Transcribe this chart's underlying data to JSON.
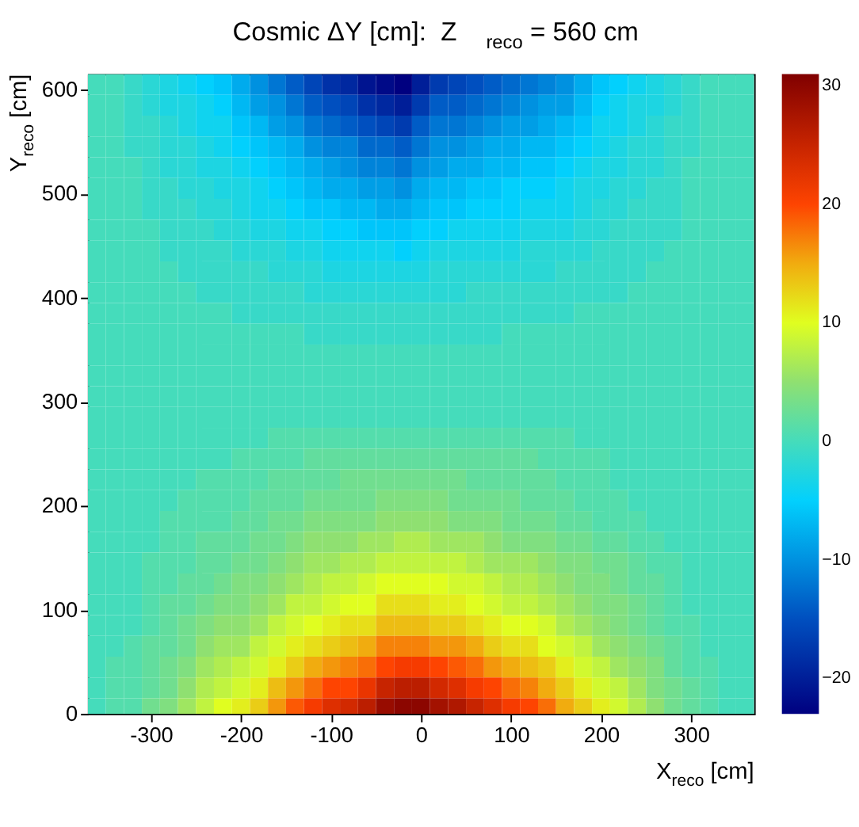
{
  "chart_data": {
    "type": "heatmap",
    "title": "Cosmic ΔY [cm]:  Z$_{reco}$ = 560 cm",
    "xlabel": "X$_{reco}$ [cm]",
    "ylabel": "Y$_{reco}$ [cm]",
    "x": [
      -360,
      -340,
      -320,
      -300,
      -280,
      -260,
      -240,
      -220,
      -200,
      -180,
      -160,
      -140,
      -120,
      -100,
      -80,
      -60,
      -40,
      -20,
      0,
      20,
      40,
      60,
      80,
      100,
      120,
      140,
      160,
      180,
      200,
      220,
      240,
      260,
      280,
      300,
      320,
      340,
      360
    ],
    "y": [
      605,
      585,
      565,
      545,
      525,
      505,
      485,
      465,
      445,
      425,
      405,
      385,
      365,
      345,
      325,
      305,
      285,
      265,
      245,
      225,
      205,
      185,
      165,
      145,
      125,
      105,
      85,
      65,
      45,
      25,
      5
    ],
    "xlim": [
      -370,
      370
    ],
    "ylim": [
      0,
      615
    ],
    "xticks": [
      -300,
      -200,
      -100,
      0,
      100,
      200,
      300
    ],
    "yticks": [
      0,
      100,
      200,
      300,
      400,
      500,
      600
    ],
    "clim": [
      -23,
      31
    ],
    "cticks": [
      {
        "value": -20,
        "label": "−20"
      },
      {
        "value": -10,
        "label": "−10"
      },
      0,
      10,
      20,
      30
    ],
    "grid": false,
    "cells": [
      [
        0,
        0,
        -1,
        -2,
        -3,
        -4,
        -5,
        -6,
        -8,
        -10,
        -12,
        -14,
        -16,
        -18,
        -19,
        -21,
        -22,
        -23,
        -20,
        -17,
        -16,
        -15,
        -14,
        -13,
        -12,
        -11,
        -10,
        -8,
        -6,
        -5,
        -4,
        -3,
        -2,
        -1,
        0,
        0,
        0
      ],
      [
        0,
        0,
        -1,
        -2,
        -3,
        -3,
        -4,
        -5,
        -7,
        -9,
        -10,
        -12,
        -14,
        -15,
        -16,
        -18,
        -19,
        -20,
        -17,
        -14,
        -14,
        -13,
        -12,
        -11,
        -10,
        -9,
        -9,
        -7,
        -5,
        -4,
        -3,
        -3,
        -2,
        -1,
        0,
        0,
        0
      ],
      [
        0,
        0,
        -1,
        -1,
        -2,
        -3,
        -4,
        -4,
        -6,
        -7,
        -9,
        -10,
        -12,
        -13,
        -14,
        -15,
        -16,
        -17,
        -14,
        -12,
        -12,
        -11,
        -10,
        -9,
        -9,
        -8,
        -7,
        -6,
        -4,
        -4,
        -3,
        -2,
        -1,
        -1,
        0,
        0,
        0
      ],
      [
        0,
        0,
        -1,
        -1,
        -2,
        -2,
        -3,
        -4,
        -5,
        -6,
        -7,
        -8,
        -10,
        -11,
        -11,
        -13,
        -13,
        -14,
        -12,
        -10,
        -10,
        -9,
        -8,
        -8,
        -7,
        -7,
        -6,
        -5,
        -4,
        -3,
        -2,
        -2,
        -1,
        -1,
        0,
        0,
        0
      ],
      [
        0,
        0,
        0,
        -1,
        -2,
        -2,
        -3,
        -3,
        -4,
        -5,
        -6,
        -7,
        -8,
        -9,
        -10,
        -11,
        -11,
        -12,
        -10,
        -9,
        -8,
        -8,
        -7,
        -7,
        -6,
        -6,
        -5,
        -4,
        -3,
        -3,
        -2,
        -2,
        -1,
        0,
        0,
        0,
        0
      ],
      [
        0,
        0,
        0,
        -1,
        -1,
        -2,
        -2,
        -3,
        -3,
        -4,
        -5,
        -6,
        -7,
        -8,
        -8,
        -9,
        -9,
        -10,
        -8,
        -7,
        -7,
        -6,
        -6,
        -5,
        -5,
        -5,
        -4,
        -3,
        -3,
        -2,
        -2,
        -1,
        -1,
        0,
        0,
        0,
        0
      ],
      [
        0,
        0,
        0,
        -1,
        -1,
        -1,
        -2,
        -2,
        -3,
        -4,
        -4,
        -5,
        -6,
        -6,
        -7,
        -7,
        -8,
        -8,
        -7,
        -6,
        -6,
        -5,
        -5,
        -5,
        -4,
        -4,
        -4,
        -3,
        -2,
        -2,
        -1,
        -1,
        -1,
        0,
        0,
        0,
        0
      ],
      [
        0,
        0,
        0,
        0,
        -1,
        -1,
        -1,
        -2,
        -2,
        -3,
        -3,
        -4,
        -4,
        -5,
        -5,
        -6,
        -6,
        -6,
        -5,
        -5,
        -4,
        -4,
        -4,
        -4,
        -3,
        -3,
        -3,
        -2,
        -2,
        -1,
        -1,
        -1,
        -1,
        0,
        0,
        0,
        0
      ],
      [
        0,
        0,
        0,
        0,
        -1,
        -1,
        -1,
        -1,
        -2,
        -2,
        -2,
        -3,
        -3,
        -4,
        -4,
        -4,
        -4,
        -5,
        -4,
        -3,
        -3,
        -3,
        -3,
        -3,
        -2,
        -2,
        -2,
        -2,
        -1,
        -1,
        -1,
        -1,
        0,
        0,
        0,
        0,
        0
      ],
      [
        0,
        0,
        0,
        0,
        0,
        -1,
        -1,
        -1,
        -1,
        -1,
        -2,
        -2,
        -2,
        -3,
        -3,
        -3,
        -3,
        -3,
        -3,
        -2,
        -2,
        -2,
        -2,
        -2,
        -2,
        -2,
        -1,
        -1,
        -1,
        -1,
        -1,
        0,
        0,
        0,
        0,
        0,
        0
      ],
      [
        0,
        0,
        0,
        0,
        0,
        0,
        -1,
        -1,
        -1,
        -1,
        -1,
        -1,
        -2,
        -2,
        -2,
        -2,
        -2,
        -2,
        -2,
        -2,
        -2,
        -1,
        -1,
        -1,
        -1,
        -1,
        -1,
        -1,
        -1,
        -1,
        0,
        0,
        0,
        0,
        0,
        0,
        0
      ],
      [
        0,
        0,
        0,
        0,
        0,
        0,
        0,
        0,
        -1,
        -1,
        -1,
        -1,
        -1,
        -1,
        -1,
        -1,
        -1,
        -1,
        -1,
        -1,
        -1,
        -1,
        -1,
        -1,
        -1,
        -1,
        -1,
        0,
        0,
        0,
        0,
        0,
        0,
        0,
        0,
        0,
        0
      ],
      [
        0,
        0,
        0,
        0,
        0,
        0,
        0,
        0,
        0,
        0,
        0,
        0,
        -1,
        -1,
        -1,
        -1,
        -1,
        -1,
        -1,
        -1,
        -1,
        -1,
        -1,
        0,
        0,
        0,
        0,
        0,
        0,
        0,
        0,
        0,
        0,
        0,
        0,
        0,
        0
      ],
      [
        0,
        0,
        0,
        0,
        0,
        0,
        0,
        0,
        0,
        0,
        0,
        0,
        0,
        0,
        0,
        0,
        0,
        0,
        0,
        0,
        0,
        0,
        0,
        0,
        0,
        0,
        0,
        0,
        0,
        0,
        0,
        0,
        0,
        0,
        0,
        0,
        0
      ],
      [
        0,
        0,
        0,
        0,
        0,
        0,
        0,
        0,
        0,
        0,
        0,
        0,
        0,
        0,
        0,
        0,
        0,
        0,
        0,
        0,
        0,
        0,
        0,
        0,
        0,
        0,
        0,
        0,
        0,
        0,
        0,
        0,
        0,
        0,
        0,
        0,
        0
      ],
      [
        0,
        0,
        0,
        0,
        0,
        0,
        0,
        0,
        0,
        0,
        0,
        0,
        0,
        0,
        0,
        0,
        0,
        0,
        0,
        0,
        0,
        0,
        0,
        0,
        0,
        0,
        0,
        0,
        0,
        0,
        0,
        0,
        0,
        0,
        0,
        0,
        0
      ],
      [
        0,
        0,
        0,
        0,
        0,
        0,
        0,
        0,
        0,
        0,
        0,
        0,
        0,
        0,
        0,
        0,
        0,
        0,
        0,
        0,
        0,
        0,
        0,
        0,
        0,
        0,
        0,
        0,
        0,
        0,
        0,
        0,
        0,
        0,
        0,
        0,
        0
      ],
      [
        0,
        0,
        0,
        0,
        0,
        0,
        0,
        0,
        0,
        0,
        1,
        1,
        1,
        1,
        1,
        1,
        1,
        1,
        1,
        1,
        1,
        1,
        1,
        1,
        1,
        1,
        1,
        0,
        0,
        0,
        0,
        0,
        0,
        0,
        0,
        0,
        0
      ],
      [
        0,
        0,
        0,
        0,
        0,
        0,
        0,
        0,
        1,
        1,
        1,
        1,
        2,
        2,
        2,
        2,
        2,
        2,
        2,
        2,
        2,
        2,
        2,
        2,
        2,
        1,
        1,
        1,
        1,
        0,
        0,
        0,
        0,
        0,
        0,
        0,
        0
      ],
      [
        0,
        0,
        0,
        0,
        0,
        0,
        1,
        1,
        1,
        1,
        2,
        2,
        2,
        2,
        3,
        3,
        3,
        3,
        3,
        3,
        3,
        2,
        2,
        2,
        2,
        2,
        1,
        1,
        1,
        0,
        0,
        0,
        0,
        0,
        0,
        0,
        0
      ],
      [
        0,
        0,
        0,
        0,
        0,
        1,
        1,
        1,
        1,
        2,
        2,
        2,
        3,
        3,
        3,
        3,
        4,
        4,
        4,
        4,
        3,
        3,
        3,
        3,
        2,
        2,
        2,
        1,
        1,
        1,
        0,
        0,
        0,
        0,
        0,
        0,
        0
      ],
      [
        0,
        0,
        0,
        0,
        1,
        1,
        1,
        1,
        2,
        2,
        3,
        3,
        4,
        4,
        4,
        4,
        5,
        5,
        5,
        5,
        4,
        4,
        4,
        3,
        3,
        3,
        2,
        2,
        1,
        1,
        1,
        0,
        0,
        0,
        0,
        0,
        0
      ],
      [
        0,
        0,
        0,
        0,
        1,
        1,
        2,
        2,
        2,
        3,
        3,
        4,
        5,
        5,
        5,
        6,
        6,
        7,
        7,
        6,
        6,
        6,
        5,
        4,
        4,
        4,
        3,
        3,
        2,
        2,
        1,
        1,
        0,
        0,
        0,
        0,
        0
      ],
      [
        0,
        0,
        0,
        1,
        1,
        1,
        2,
        2,
        3,
        3,
        4,
        5,
        6,
        6,
        7,
        7,
        8,
        8,
        8,
        8,
        8,
        7,
        6,
        6,
        6,
        5,
        4,
        4,
        3,
        3,
        2,
        1,
        1,
        0,
        0,
        0,
        0
      ],
      [
        0,
        0,
        0,
        1,
        1,
        2,
        2,
        3,
        4,
        4,
        5,
        6,
        7,
        8,
        8,
        9,
        10,
        10,
        10,
        10,
        9,
        9,
        8,
        7,
        7,
        6,
        5,
        4,
        4,
        3,
        2,
        2,
        1,
        0,
        0,
        0,
        0
      ],
      [
        0,
        0,
        0,
        1,
        2,
        2,
        3,
        4,
        4,
        5,
        6,
        8,
        8,
        9,
        10,
        10,
        12,
        12,
        12,
        11,
        11,
        10,
        9,
        8,
        8,
        7,
        6,
        5,
        4,
        4,
        3,
        2,
        1,
        0,
        0,
        0,
        0
      ],
      [
        0,
        0,
        0,
        1,
        2,
        3,
        4,
        5,
        5,
        6,
        8,
        9,
        10,
        11,
        12,
        12,
        14,
        14,
        14,
        13,
        13,
        12,
        11,
        10,
        10,
        9,
        7,
        6,
        5,
        4,
        3,
        2,
        1,
        1,
        0,
        0,
        0
      ],
      [
        0,
        0,
        1,
        2,
        2,
        3,
        5,
        6,
        6,
        8,
        9,
        11,
        12,
        13,
        14,
        15,
        17,
        17,
        17,
        16,
        16,
        15,
        13,
        12,
        12,
        10,
        9,
        8,
        6,
        5,
        4,
        3,
        2,
        1,
        0,
        0,
        0
      ],
      [
        0,
        1,
        1,
        2,
        3,
        4,
        6,
        7,
        8,
        9,
        11,
        13,
        15,
        16,
        17,
        18,
        20,
        21,
        21,
        20,
        19,
        18,
        16,
        15,
        14,
        13,
        11,
        9,
        8,
        6,
        5,
        4,
        2,
        1,
        1,
        0,
        0
      ],
      [
        0,
        1,
        1,
        2,
        3,
        5,
        7,
        8,
        9,
        11,
        14,
        16,
        18,
        20,
        20,
        22,
        25,
        26,
        26,
        24,
        23,
        21,
        20,
        18,
        17,
        15,
        13,
        11,
        9,
        8,
        6,
        4,
        3,
        2,
        1,
        0,
        0
      ],
      [
        0,
        1,
        1,
        3,
        4,
        6,
        8,
        10,
        11,
        13,
        16,
        19,
        21,
        23,
        24,
        26,
        29,
        30,
        30,
        28,
        27,
        25,
        23,
        21,
        20,
        18,
        15,
        13,
        11,
        9,
        7,
        5,
        3,
        2,
        1,
        0,
        0
      ]
    ]
  }
}
